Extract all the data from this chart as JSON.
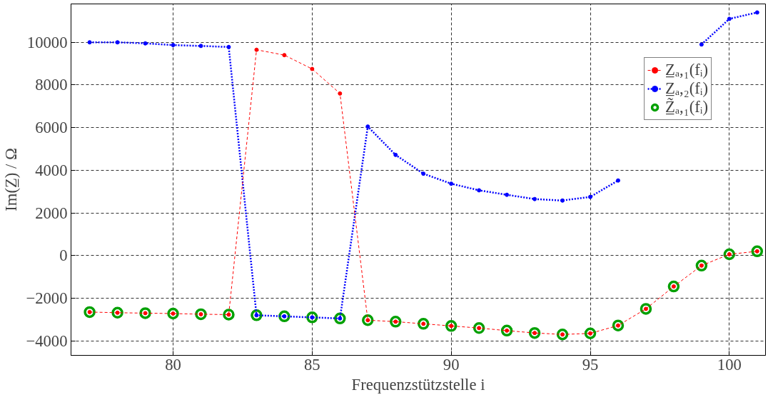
{
  "chart_data": {
    "type": "line",
    "xlabel": "Frequenzstützstelle i",
    "ylabel": "Im(Z̲) / Ω",
    "x": [
      77,
      78,
      79,
      80,
      81,
      82,
      83,
      84,
      85,
      86,
      87,
      88,
      89,
      90,
      91,
      92,
      93,
      94,
      95,
      96,
      97,
      98,
      99,
      100,
      101
    ],
    "xlim": [
      76.33,
      101.3
    ],
    "xticks": [
      80,
      85,
      90,
      95,
      100
    ],
    "ylim": [
      -4680,
      11800
    ],
    "yticks": [
      -4000,
      -2000,
      0,
      2000,
      4000,
      6000,
      8000,
      10000
    ],
    "grid": true,
    "legend": "top right",
    "series": [
      {
        "name": "Z̲ₐ,₁(fᵢ)",
        "color": "#ff0000",
        "marker": "circle",
        "line_style": "dashed",
        "values": [
          -2650,
          -2680,
          -2700,
          -2720,
          -2750,
          -2770,
          9650,
          9400,
          8750,
          7600,
          -3030,
          -3100,
          -3200,
          -3300,
          -3400,
          -3520,
          -3630,
          -3700,
          -3650,
          -3280,
          -2500,
          -1450,
          -470,
          60,
          200
        ]
      },
      {
        "name": "Z̲ₐ,₂(fᵢ)",
        "color": "#0000ff",
        "type": "line",
        "marker": "circle",
        "line_style": "dotted",
        "values": [
          10000,
          10000,
          9950,
          9870,
          9830,
          9780,
          -2800,
          -2850,
          -2900,
          -2950,
          6050,
          4720,
          3840,
          3370,
          3060,
          2850,
          2650,
          2580,
          2750,
          3520,
          null,
          null,
          9900,
          11100,
          11400
        ]
      },
      {
        "name": "Z̲̃ₐ,₁(fᵢ)",
        "color": "#00a000",
        "type": "scatter",
        "marker": "circle",
        "values": [
          -2650,
          -2680,
          -2700,
          -2720,
          -2750,
          -2770,
          -2800,
          -2850,
          -2900,
          -2950,
          -3030,
          -3100,
          -3200,
          -3300,
          -3400,
          -3520,
          -3630,
          -3700,
          -3650,
          -3280,
          -2500,
          -1450,
          -470,
          60,
          200
        ]
      }
    ]
  }
}
